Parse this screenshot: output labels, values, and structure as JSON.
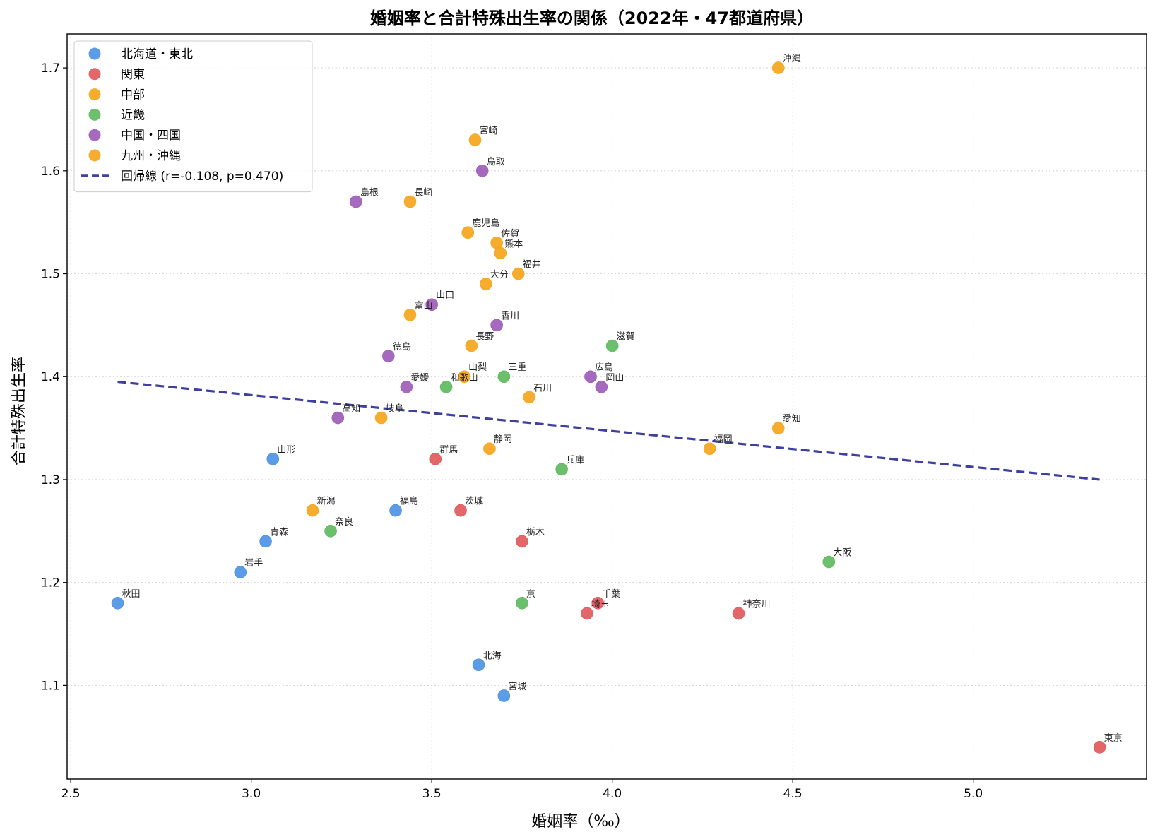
{
  "chart_data": {
    "type": "scatter",
    "title": "婚姻率と合計特殊出生率の関係（2022年・47都道府県）",
    "xlabel": "婚姻率（‰）",
    "ylabel": "合計特殊出生率",
    "xlim": [
      2.49,
      5.48
    ],
    "ylim": [
      1.009,
      1.733
    ],
    "xticks": [
      "2.5",
      "3.0",
      "3.5",
      "4.0",
      "4.5",
      "5.0"
    ],
    "yticks": [
      "1.1",
      "1.2",
      "1.3",
      "1.4",
      "1.5",
      "1.6",
      "1.7"
    ],
    "grid": true,
    "legend_position": "top-left",
    "colors": {
      "hokkaido_tohoku": "#4a90e2",
      "kanto": "#e05559",
      "chubu": "#f5a316",
      "kinki": "#5cb85c",
      "chugoku_shikoku": "#9b59b6",
      "kyushu_okinawa": "#f5a316",
      "regression": "#3f3f9e"
    },
    "series": [
      {
        "name": "北海道・東北",
        "color_key": "hokkaido_tohoku",
        "points": [
          {
            "label": "北海",
            "x": 3.63,
            "y": 1.12
          },
          {
            "label": "青森",
            "x": 3.04,
            "y": 1.24
          },
          {
            "label": "岩手",
            "x": 2.97,
            "y": 1.21
          },
          {
            "label": "宮城",
            "x": 3.7,
            "y": 1.09
          },
          {
            "label": "秋田",
            "x": 2.63,
            "y": 1.18
          },
          {
            "label": "山形",
            "x": 3.06,
            "y": 1.32
          },
          {
            "label": "福島",
            "x": 3.4,
            "y": 1.27
          }
        ]
      },
      {
        "name": "関東",
        "color_key": "kanto",
        "points": [
          {
            "label": "茨城",
            "x": 3.58,
            "y": 1.27
          },
          {
            "label": "栃木",
            "x": 3.75,
            "y": 1.24
          },
          {
            "label": "群馬",
            "x": 3.51,
            "y": 1.32
          },
          {
            "label": "埼玉",
            "x": 3.93,
            "y": 1.17
          },
          {
            "label": "千葉",
            "x": 3.96,
            "y": 1.18
          },
          {
            "label": "東京",
            "x": 5.35,
            "y": 1.04
          },
          {
            "label": "神奈川",
            "x": 4.35,
            "y": 1.17
          }
        ]
      },
      {
        "name": "中部",
        "color_key": "chubu",
        "points": [
          {
            "label": "新潟",
            "x": 3.17,
            "y": 1.27
          },
          {
            "label": "富山",
            "x": 3.44,
            "y": 1.46
          },
          {
            "label": "石川",
            "x": 3.77,
            "y": 1.38
          },
          {
            "label": "福井",
            "x": 3.74,
            "y": 1.5
          },
          {
            "label": "山梨",
            "x": 3.59,
            "y": 1.4
          },
          {
            "label": "長野",
            "x": 3.61,
            "y": 1.43
          },
          {
            "label": "岐阜",
            "x": 3.36,
            "y": 1.36
          },
          {
            "label": "静岡",
            "x": 3.66,
            "y": 1.33
          },
          {
            "label": "愛知",
            "x": 4.46,
            "y": 1.35
          }
        ]
      },
      {
        "name": "近畿",
        "color_key": "kinki",
        "points": [
          {
            "label": "三重",
            "x": 3.7,
            "y": 1.4
          },
          {
            "label": "滋賀",
            "x": 4.0,
            "y": 1.43
          },
          {
            "label": "京",
            "x": 3.75,
            "y": 1.18
          },
          {
            "label": "大阪",
            "x": 4.6,
            "y": 1.22
          },
          {
            "label": "兵庫",
            "x": 3.86,
            "y": 1.31
          },
          {
            "label": "奈良",
            "x": 3.22,
            "y": 1.25
          },
          {
            "label": "和歌山",
            "x": 3.54,
            "y": 1.39
          }
        ]
      },
      {
        "name": "中国・四国",
        "color_key": "chugoku_shikoku",
        "points": [
          {
            "label": "鳥取",
            "x": 3.64,
            "y": 1.6
          },
          {
            "label": "島根",
            "x": 3.29,
            "y": 1.57
          },
          {
            "label": "岡山",
            "x": 3.97,
            "y": 1.39
          },
          {
            "label": "広島",
            "x": 3.94,
            "y": 1.4
          },
          {
            "label": "山口",
            "x": 3.5,
            "y": 1.47
          },
          {
            "label": "徳島",
            "x": 3.38,
            "y": 1.42
          },
          {
            "label": "香川",
            "x": 3.68,
            "y": 1.45
          },
          {
            "label": "愛媛",
            "x": 3.43,
            "y": 1.39
          },
          {
            "label": "高知",
            "x": 3.24,
            "y": 1.36
          }
        ]
      },
      {
        "name": "九州・沖縄",
        "color_key": "kyushu_okinawa",
        "points": [
          {
            "label": "福岡",
            "x": 4.27,
            "y": 1.33
          },
          {
            "label": "佐賀",
            "x": 3.68,
            "y": 1.53
          },
          {
            "label": "長崎",
            "x": 3.44,
            "y": 1.57
          },
          {
            "label": "熊本",
            "x": 3.69,
            "y": 1.52
          },
          {
            "label": "大分",
            "x": 3.65,
            "y": 1.49
          },
          {
            "label": "宮崎",
            "x": 3.62,
            "y": 1.63
          },
          {
            "label": "鹿児島",
            "x": 3.6,
            "y": 1.54
          },
          {
            "label": "沖縄",
            "x": 4.46,
            "y": 1.7
          }
        ]
      }
    ],
    "regression": {
      "name": "回帰線 (r=-0.108, p=0.470)",
      "x": [
        2.63,
        5.35
      ],
      "y": [
        1.395,
        1.3
      ]
    }
  }
}
